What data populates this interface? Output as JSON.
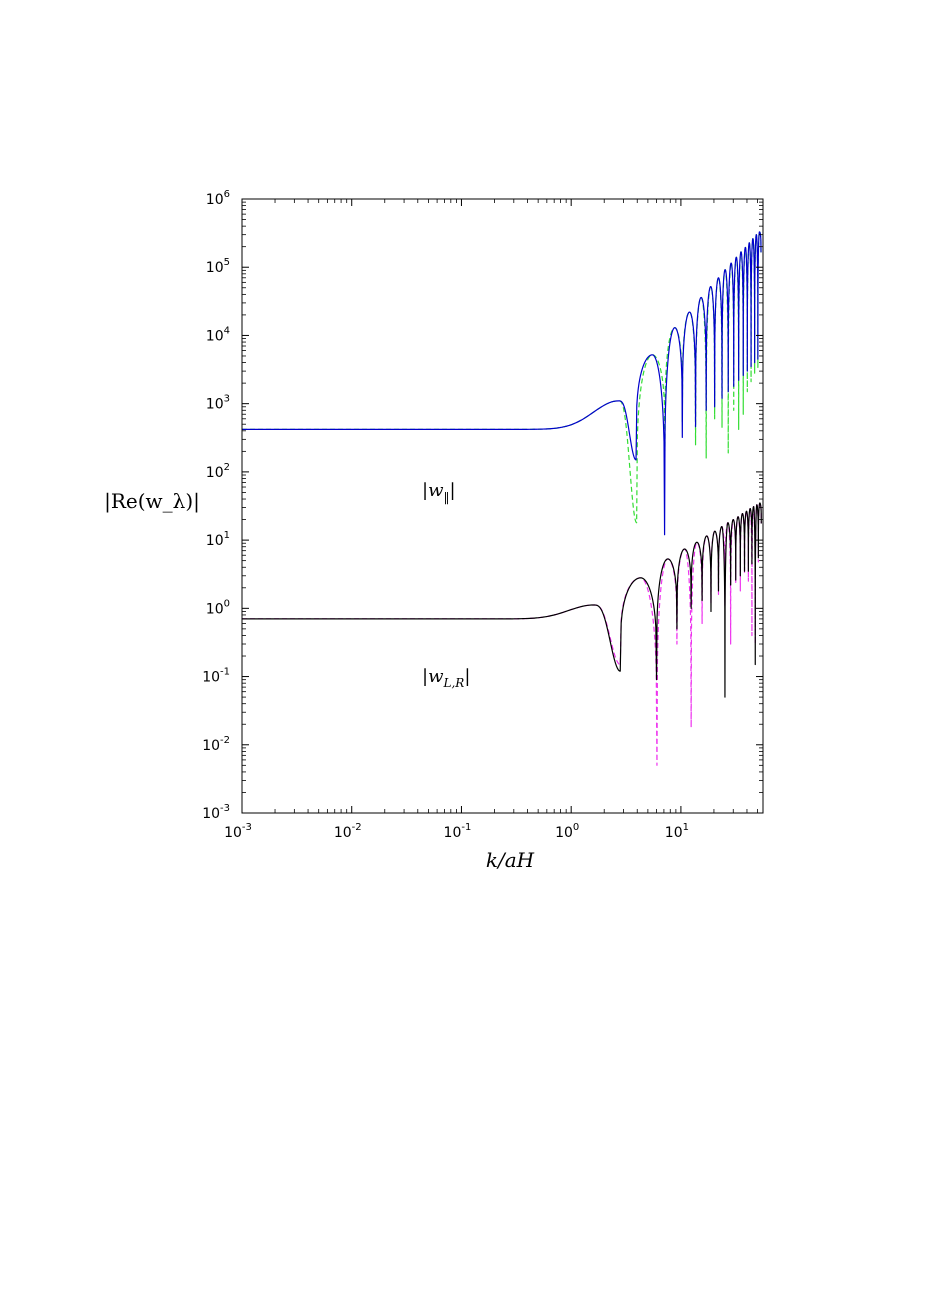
{
  "chart_data": {
    "type": "line",
    "x_scale": "log",
    "y_scale": "log",
    "xlim": [
      0.001,
      56
    ],
    "ylim": [
      0.001,
      1000000
    ],
    "xlabel": "k/aH",
    "ylabel": "|Re(w_λ)|",
    "x_ticks": [
      {
        "base": "10",
        "exp": "-3",
        "value": 0.001
      },
      {
        "base": "10",
        "exp": "-2",
        "value": 0.01
      },
      {
        "base": "10",
        "exp": "-1",
        "value": 0.1
      },
      {
        "base": "10",
        "exp": "0",
        "value": 1
      },
      {
        "base": "10",
        "exp": "1",
        "value": 10
      }
    ],
    "y_ticks": [
      {
        "base": "10",
        "exp": "-3",
        "value": 0.001
      },
      {
        "base": "10",
        "exp": "-2",
        "value": 0.01
      },
      {
        "base": "10",
        "exp": "-1",
        "value": 0.1
      },
      {
        "base": "10",
        "exp": "0",
        "value": 1
      },
      {
        "base": "10",
        "exp": "1",
        "value": 10
      },
      {
        "base": "10",
        "exp": "2",
        "value": 100
      },
      {
        "base": "10",
        "exp": "3",
        "value": 1000
      },
      {
        "base": "10",
        "exp": "4",
        "value": 10000
      },
      {
        "base": "10",
        "exp": "5",
        "value": 100000
      },
      {
        "base": "10",
        "exp": "6",
        "value": 1000000
      }
    ],
    "annotations": [
      {
        "main": "|w",
        "sub": "‖",
        "close": "|"
      },
      {
        "main": "|w",
        "sub": "L,R",
        "close": "|"
      }
    ],
    "series": [
      {
        "group": "parallel",
        "color": "#0000cc",
        "dash": "solid",
        "plateau": 420,
        "bump_peak": [
          2.7,
          1100
        ],
        "minima": [
          [
            3.9,
            150
          ],
          [
            7.1,
            12
          ],
          [
            10.3,
            320
          ],
          [
            13.6,
            460
          ],
          [
            17,
            800
          ],
          [
            20.3,
            900
          ],
          [
            23.7,
            1200
          ],
          [
            27,
            1500
          ],
          [
            30.3,
            1800
          ],
          [
            33.6,
            2200
          ],
          [
            37,
            2600
          ],
          [
            40.3,
            3000
          ],
          [
            43.6,
            3500
          ],
          [
            47,
            4000
          ],
          [
            50.3,
            4500
          ]
        ],
        "maxima": [
          [
            5.5,
            5200
          ],
          [
            8.8,
            13000
          ],
          [
            12,
            22000
          ],
          [
            15.3,
            36000
          ],
          [
            18.7,
            52000
          ],
          [
            22,
            70000
          ],
          [
            25.3,
            92000
          ],
          [
            28.7,
            115000
          ],
          [
            32,
            140000
          ],
          [
            35.3,
            168000
          ],
          [
            38.7,
            195000
          ],
          [
            42,
            228000
          ],
          [
            45.3,
            262000
          ],
          [
            48.7,
            300000
          ],
          [
            52,
            330000
          ]
        ]
      },
      {
        "group": "parallel",
        "color": "#33dd33",
        "dash": "dashed",
        "plateau": 420,
        "bump_peak": [
          2.7,
          1100
        ],
        "minima": [
          [
            3.95,
            18
          ],
          [
            7.15,
            200
          ],
          [
            10.3,
            550
          ],
          [
            13.6,
            250
          ],
          [
            17,
            160
          ],
          [
            20.3,
            600
          ],
          [
            23.7,
            450
          ],
          [
            27,
            190
          ],
          [
            30.3,
            800
          ],
          [
            33.6,
            420
          ],
          [
            37,
            700
          ],
          [
            40.3,
            1500
          ],
          [
            43.6,
            2100
          ],
          [
            47,
            2800
          ],
          [
            50.3,
            3400
          ]
        ],
        "maxima": [
          [
            5.5,
            5200
          ],
          [
            8.8,
            13000
          ],
          [
            12,
            22000
          ],
          [
            15.3,
            36000
          ],
          [
            18.7,
            52000
          ],
          [
            22,
            70000
          ],
          [
            25.3,
            92000
          ],
          [
            28.7,
            115000
          ],
          [
            32,
            140000
          ],
          [
            35.3,
            168000
          ],
          [
            38.7,
            195000
          ],
          [
            42,
            228000
          ],
          [
            45.3,
            262000
          ],
          [
            48.7,
            300000
          ],
          [
            52,
            330000
          ]
        ]
      },
      {
        "group": "LR",
        "color": "#000000",
        "dash": "solid",
        "plateau": 0.7,
        "bump_peak": [
          1.6,
          1.12
        ],
        "minima": [
          [
            2.8,
            0.12
          ],
          [
            6,
            0.09
          ],
          [
            9.2,
            0.5
          ],
          [
            12.4,
            1.0
          ],
          [
            15.6,
            1.3
          ],
          [
            18.8,
            0.9
          ],
          [
            22,
            1.8
          ],
          [
            25.2,
            0.05
          ],
          [
            28.4,
            2.2
          ],
          [
            31.6,
            2.6
          ],
          [
            34.8,
            3.0
          ],
          [
            38,
            3.5
          ],
          [
            41.2,
            3.5
          ],
          [
            44.4,
            4.5
          ],
          [
            47.6,
            0.15
          ],
          [
            50.8,
            5.5
          ]
        ],
        "maxima": [
          [
            4.3,
            2.8
          ],
          [
            7.6,
            5.3
          ],
          [
            10.8,
            7.4
          ],
          [
            14,
            9.3
          ],
          [
            17.2,
            11.5
          ],
          [
            20.4,
            13.5
          ],
          [
            23.6,
            15.8
          ],
          [
            26.8,
            18
          ],
          [
            30,
            20
          ],
          [
            33.2,
            22
          ],
          [
            36.4,
            24.5
          ],
          [
            39.6,
            26.5
          ],
          [
            42.8,
            29
          ],
          [
            46,
            31
          ],
          [
            49.2,
            33
          ],
          [
            52.4,
            35
          ]
        ]
      },
      {
        "group": "LR",
        "color": "#ee33ee",
        "dash": "dashed",
        "plateau": 0.7,
        "bump_peak": [
          1.6,
          1.12
        ],
        "minima": [
          [
            2.8,
            0.15
          ],
          [
            6.05,
            0.005
          ],
          [
            9.2,
            0.3
          ],
          [
            12.4,
            0.018
          ],
          [
            15.6,
            0.6
          ],
          [
            18.8,
            1.2
          ],
          [
            22,
            1.6
          ],
          [
            25.2,
            1.1
          ],
          [
            28.4,
            0.3
          ],
          [
            31.6,
            2.4
          ],
          [
            34.8,
            1.8
          ],
          [
            38,
            3.2
          ],
          [
            41.2,
            2.5
          ],
          [
            44.4,
            0.4
          ],
          [
            47.6,
            0.3
          ],
          [
            50.8,
            4.8
          ]
        ],
        "maxima": [
          [
            4.3,
            2.8
          ],
          [
            7.6,
            5.3
          ],
          [
            10.8,
            7.4
          ],
          [
            14,
            9.3
          ],
          [
            17.2,
            11.5
          ],
          [
            20.4,
            13.5
          ],
          [
            23.6,
            15.8
          ],
          [
            26.8,
            18
          ],
          [
            30,
            20
          ],
          [
            33.2,
            22
          ],
          [
            36.4,
            24.5
          ],
          [
            39.6,
            26.5
          ],
          [
            42.8,
            29
          ],
          [
            46,
            31
          ],
          [
            49.2,
            33
          ],
          [
            52.4,
            35
          ]
        ]
      }
    ]
  }
}
